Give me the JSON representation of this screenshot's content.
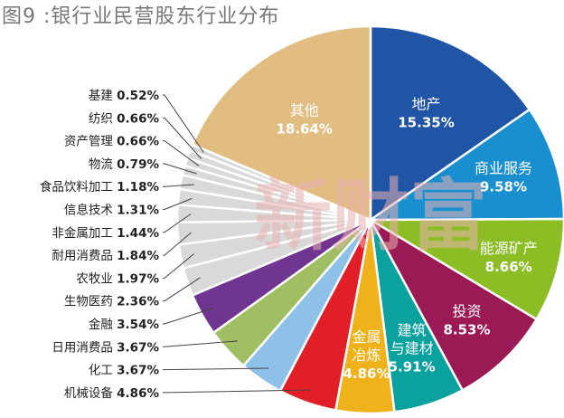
{
  "chart_data": {
    "type": "pie",
    "title": "图9 :银行业民营股东行业分布",
    "watermark": "新财富",
    "slices": [
      {
        "name": "地产",
        "value": 15.35,
        "label": "15.35%",
        "color": "#1f55a4",
        "text_color": "#ffffff",
        "position": "inside"
      },
      {
        "name": "商业服务",
        "value": 9.58,
        "label": "9.58%",
        "color": "#1a8fd0",
        "text_color": "#ffffff",
        "position": "inside"
      },
      {
        "name": "能源矿产",
        "value": 8.66,
        "label": "8.66%",
        "color": "#8cbd24",
        "text_color": "#ffffff",
        "position": "inside"
      },
      {
        "name": "投资",
        "value": 8.53,
        "label": "8.53%",
        "color": "#9b1a56",
        "text_color": "#ffffff",
        "position": "inside"
      },
      {
        "name": "建筑与建材",
        "value": 5.91,
        "label": "5.91%",
        "color": "#0aa19f",
        "text_color": "#ffffff",
        "position": "inside",
        "name_lines": [
          "建筑",
          "与建材"
        ]
      },
      {
        "name": "金属冶炼",
        "value": 4.86,
        "label": "4.86%",
        "color": "#f0b21a",
        "text_color": "#ffffff",
        "position": "inside",
        "name_lines": [
          "金属",
          "冶炼"
        ]
      },
      {
        "name": "机械设备",
        "value": 4.86,
        "label": "4.86%",
        "color": "#e21f26",
        "position": "outside"
      },
      {
        "name": "化工",
        "value": 3.67,
        "label": "3.67%",
        "color": "#8ec1e8",
        "position": "outside"
      },
      {
        "name": "日用消费品",
        "value": 3.67,
        "label": "3.67%",
        "color": "#9fbf62",
        "position": "outside"
      },
      {
        "name": "金融",
        "value": 3.54,
        "label": "3.54%",
        "color": "#6f3590",
        "position": "outside"
      },
      {
        "name": "生物医药",
        "value": 2.36,
        "label": "2.36%",
        "color": "#d9d9d9",
        "position": "outside"
      },
      {
        "name": "农牧业",
        "value": 1.97,
        "label": "1.97%",
        "color": "#d9d9d9",
        "position": "outside"
      },
      {
        "name": "耐用消费品",
        "value": 1.84,
        "label": "1.84%",
        "color": "#d9d9d9",
        "position": "outside"
      },
      {
        "name": "非金属加工",
        "value": 1.44,
        "label": "1.44%",
        "color": "#d9d9d9",
        "position": "outside"
      },
      {
        "name": "信息技术",
        "value": 1.31,
        "label": "1.31%",
        "color": "#d9d9d9",
        "position": "outside"
      },
      {
        "name": "食品饮料加工",
        "value": 1.18,
        "label": "1.18%",
        "color": "#d9d9d9",
        "position": "outside"
      },
      {
        "name": "物流",
        "value": 0.79,
        "label": "0.79%",
        "color": "#d9d9d9",
        "position": "outside"
      },
      {
        "name": "资产管理",
        "value": 0.66,
        "label": "0.66%",
        "color": "#d9d9d9",
        "position": "outside"
      },
      {
        "name": "纺织",
        "value": 0.66,
        "label": "0.66%",
        "color": "#d9d9d9",
        "position": "outside"
      },
      {
        "name": "基建",
        "value": 0.52,
        "label": "0.52%",
        "color": "#d9d9d9",
        "position": "outside"
      },
      {
        "name": "其他",
        "value": 18.64,
        "label": "18.64%",
        "color": "#e2bd82",
        "text_color": "#ffffff",
        "position": "inside"
      }
    ]
  }
}
